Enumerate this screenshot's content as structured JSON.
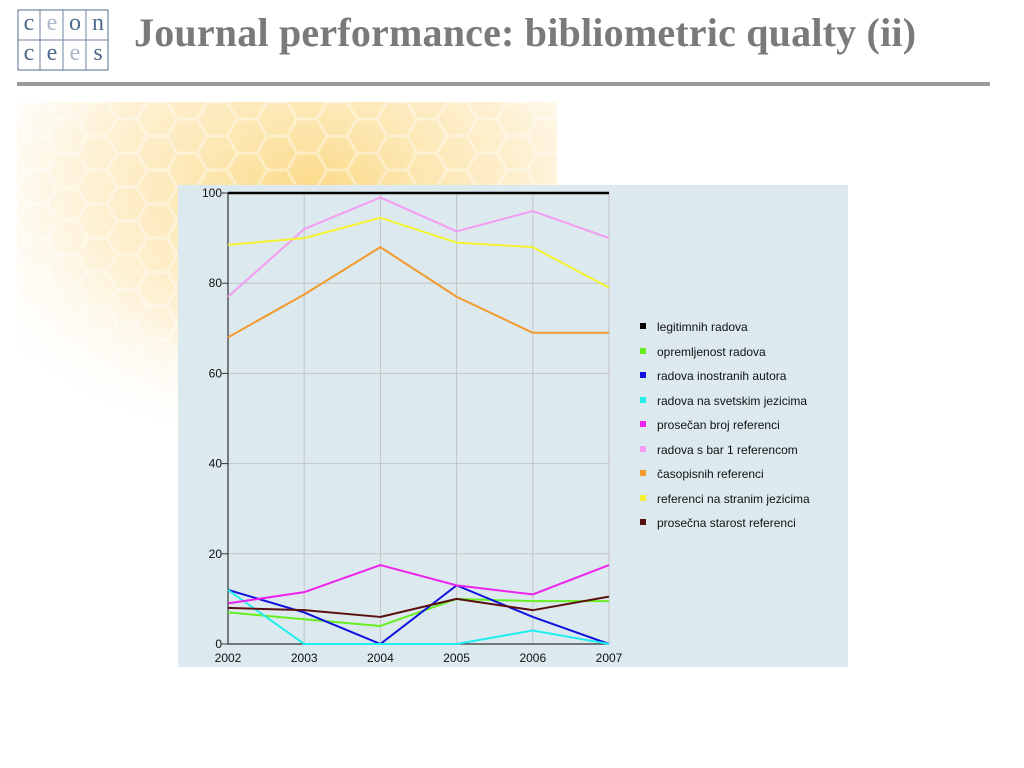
{
  "header": {
    "title": "Journal performance: bibliometric qualty (ii)",
    "logo": {
      "letters": [
        "c",
        "e",
        "o",
        "n",
        "c",
        "e",
        "e",
        "s"
      ]
    }
  },
  "chart_data": {
    "type": "line",
    "title": "",
    "xlabel": "",
    "ylabel": "",
    "x": [
      2002,
      2003,
      2004,
      2005,
      2006,
      2007
    ],
    "ylim": [
      0,
      100
    ],
    "yticks": [
      0,
      20,
      40,
      60,
      80,
      100
    ],
    "grid": true,
    "legend_position": "right",
    "series": [
      {
        "name": "legitimnih radova",
        "color": "#000000",
        "values": [
          100,
          100,
          100,
          100,
          100,
          100
        ]
      },
      {
        "name": "opremljenost radova",
        "color": "#66ee22",
        "values": [
          7,
          5.5,
          4,
          10,
          9.5,
          9.5
        ]
      },
      {
        "name": "radova inostranih autora",
        "color": "#1111dd",
        "values": [
          12,
          7,
          0,
          13,
          6,
          0
        ]
      },
      {
        "name": "radova na svetskim jezicima",
        "color": "#22eeee",
        "values": [
          12,
          0,
          0,
          0,
          3,
          0
        ]
      },
      {
        "name": "prosečan broj referenci",
        "color": "#ee22ee",
        "values": [
          9,
          11.5,
          17.5,
          13,
          11,
          17.5
        ]
      },
      {
        "name": "radova s bar 1 referencom",
        "color": "#f39cf3",
        "values": [
          77,
          92,
          99,
          91.5,
          96,
          90
        ]
      },
      {
        "name": "časopisnih referenci",
        "color": "#f29a2e",
        "values": [
          68,
          77.5,
          88,
          77,
          69,
          69
        ]
      },
      {
        "name": "referenci na stranim jezicima",
        "color": "#f5f230",
        "values": [
          88.5,
          90,
          94.5,
          89,
          88,
          79
        ]
      },
      {
        "name": "prosečna starost referenci",
        "color": "#5a1010",
        "values": [
          8,
          7.5,
          6,
          10,
          7.5,
          10.5
        ]
      }
    ]
  }
}
